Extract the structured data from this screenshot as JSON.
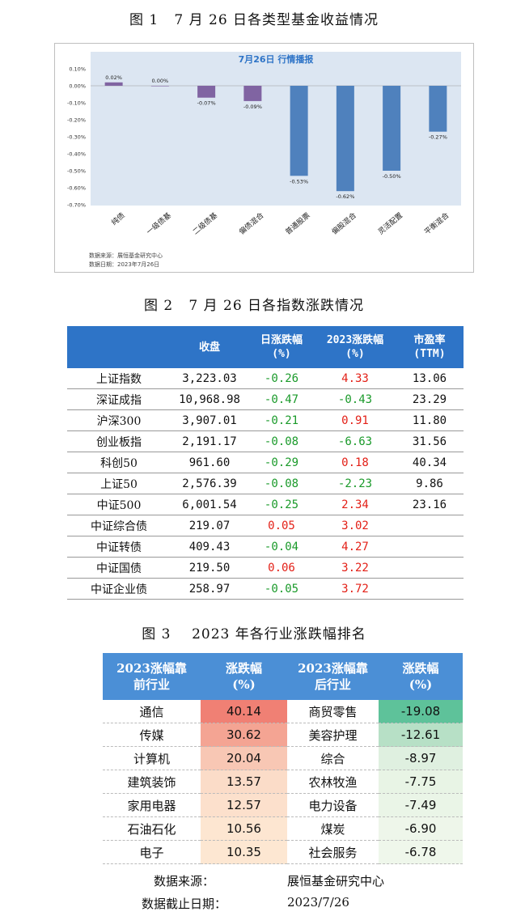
{
  "fig1": {
    "caption": "图 1   7 月 26 日各类型基金收益情况",
    "source": "数据来源：展恒基金研究中心",
    "date": "数据日期：2023年7月26日",
    "chart_data": {
      "type": "bar",
      "title": "7月26日  行情播报",
      "categories": [
        "纯债",
        "一级债基",
        "二级债基",
        "偏债混合",
        "普通股票",
        "偏股混合",
        "灵活配置",
        "平衡混合"
      ],
      "values": [
        0.02,
        0.0,
        -0.07,
        -0.09,
        -0.53,
        -0.62,
        -0.5,
        -0.27
      ],
      "data_labels": [
        "0.02%",
        "0.00%",
        "-0.07%",
        "-0.09%",
        "-0.53%",
        "-0.62%",
        "-0.50%",
        "-0.27%"
      ],
      "colors": [
        "#8064a2",
        "#8064a2",
        "#8064a2",
        "#8064a2",
        "#4f81bd",
        "#4f81bd",
        "#4f81bd",
        "#4f81bd"
      ],
      "ylim": [
        -0.7,
        0.1
      ],
      "yticks": [
        "0.10%",
        "0.00%",
        "-0.10%",
        "-0.20%",
        "-0.30%",
        "-0.40%",
        "-0.50%",
        "-0.60%",
        "-0.70%"
      ],
      "plot_background": "#dce6f2"
    }
  },
  "fig2": {
    "caption": "图 2   7 月 26 日各指数涨跌情况",
    "headers": [
      [
        "",
        ""
      ],
      [
        "收盘",
        ""
      ],
      [
        "日涨跌幅",
        "(%)"
      ],
      [
        "2023涨跌幅",
        "(%)"
      ],
      [
        "市盈率",
        "(TTM)"
      ]
    ],
    "rows": [
      {
        "name": "上证指数",
        "close": "3,223.03",
        "day": "-0.26",
        "year": "4.33",
        "pe": "13.06"
      },
      {
        "name": "深证成指",
        "close": "10,968.98",
        "day": "-0.47",
        "year": "-0.43",
        "pe": "23.29"
      },
      {
        "name": "沪深300",
        "close": "3,907.01",
        "day": "-0.21",
        "year": "0.91",
        "pe": "11.80"
      },
      {
        "name": "创业板指",
        "close": "2,191.17",
        "day": "-0.08",
        "year": "-6.63",
        "pe": "31.56"
      },
      {
        "name": "科创50",
        "close": "961.60",
        "day": "-0.29",
        "year": "0.18",
        "pe": "40.34"
      },
      {
        "name": "上证50",
        "close": "2,576.39",
        "day": "-0.08",
        "year": "-2.23",
        "pe": "9.86"
      },
      {
        "name": "中证500",
        "close": "6,001.54",
        "day": "-0.25",
        "year": "2.34",
        "pe": "23.16"
      },
      {
        "name": "中证综合债",
        "close": "219.07",
        "day": "0.05",
        "year": "3.02",
        "pe": ""
      },
      {
        "name": "中证转债",
        "close": "409.43",
        "day": "-0.04",
        "year": "4.27",
        "pe": ""
      },
      {
        "name": "中证国债",
        "close": "219.50",
        "day": "0.06",
        "year": "3.22",
        "pe": ""
      },
      {
        "name": "中证企业债",
        "close": "258.97",
        "day": "-0.05",
        "year": "3.72",
        "pe": ""
      }
    ]
  },
  "fig3": {
    "caption": "图 3    2023 年各行业涨跌幅排名",
    "headers": [
      [
        "2023涨幅靠",
        "前行业"
      ],
      [
        "涨跌幅",
        "(%)"
      ],
      [
        "2023涨幅靠",
        "后行业"
      ],
      [
        "涨跌幅",
        "(%)"
      ]
    ],
    "rows": [
      {
        "top": "通信",
        "top_val": "40.14",
        "top_color": "#f08074",
        "bottom": "商贸零售",
        "bottom_val": "-19.08",
        "bottom_color": "#5ec29a"
      },
      {
        "top": "传媒",
        "top_val": "30.62",
        "top_color": "#f4a493",
        "bottom": "美容护理",
        "bottom_val": "-12.61",
        "bottom_color": "#b7e0c6"
      },
      {
        "top": "计算机",
        "top_val": "20.04",
        "top_color": "#f8c7b4",
        "bottom": "综合",
        "bottom_val": "-8.97",
        "bottom_color": "#dff0e0"
      },
      {
        "top": "建筑装饰",
        "top_val": "13.57",
        "top_color": "#fbdcc8",
        "bottom": "农林牧渔",
        "bottom_val": "-7.75",
        "bottom_color": "#e8f4e5"
      },
      {
        "top": "家用电器",
        "top_val": "12.57",
        "top_color": "#fce0cc",
        "bottom": "电力设备",
        "bottom_val": "-7.49",
        "bottom_color": "#eaf5e7"
      },
      {
        "top": "石油石化",
        "top_val": "10.56",
        "top_color": "#fde6d1",
        "bottom": "煤炭",
        "bottom_val": "-6.90",
        "bottom_color": "#eef6ea"
      },
      {
        "top": "电子",
        "top_val": "10.35",
        "top_color": "#fde7d2",
        "bottom": "社会服务",
        "bottom_val": "-6.78",
        "bottom_color": "#eff7eb"
      }
    ],
    "source_label": "数据来源：",
    "source_value": "展恒基金研究中心",
    "date_label": "数据截止日期：",
    "date_value": "2023/7/26"
  }
}
